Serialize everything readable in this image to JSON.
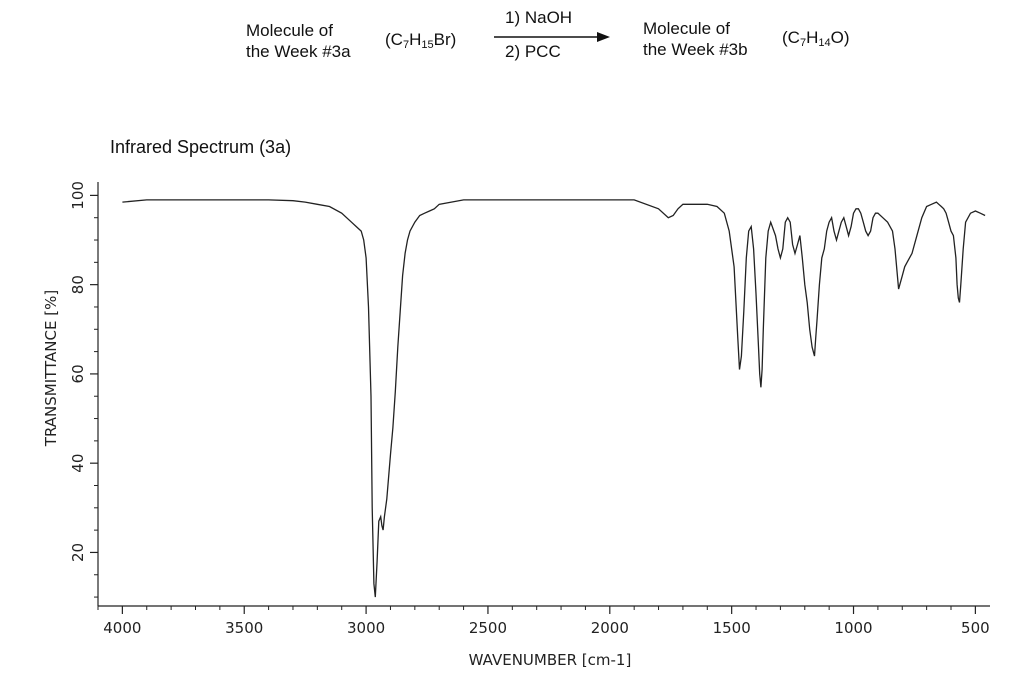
{
  "reaction": {
    "reactant_name_line1": "Molecule of",
    "reactant_name_line2": "the Week #3a",
    "reactant_formula": {
      "prefix": "(C",
      "s1": "7",
      "mid": "H",
      "s2": "15",
      "suffix": "Br)"
    },
    "step1": "1)  NaOH",
    "step2": "2)  PCC",
    "product_name_line1": "Molecule of",
    "product_name_line2": "the Week #3b",
    "product_formula": {
      "prefix": "(C",
      "s1": "7",
      "mid": "H",
      "s2": "14",
      "suffix": "O)"
    }
  },
  "chart_data": {
    "type": "line",
    "title": "Infrared Spectrum (3a)",
    "xlabel": "WAVENUMBER [cm-1]",
    "ylabel": "TRANSMITTANCE [%]",
    "xlim": [
      4100,
      440
    ],
    "ylim": [
      8,
      103
    ],
    "x_ticks": [
      4000,
      3500,
      3000,
      2500,
      2000,
      1500,
      1000,
      500
    ],
    "y_ticks": [
      20,
      40,
      60,
      80,
      100
    ],
    "grid": false,
    "line_color": "#222222",
    "series": [
      {
        "x": [
          4000,
          3900,
          3800,
          3700,
          3600,
          3500,
          3400,
          3300,
          3250,
          3200,
          3150,
          3100,
          3060,
          3040,
          3020,
          3010,
          3000,
          2990,
          2980,
          2975,
          2968,
          2962,
          2955,
          2948,
          2940,
          2935,
          2930,
          2925,
          2915,
          2900,
          2890,
          2880,
          2870,
          2860,
          2850,
          2840,
          2830,
          2820,
          2800,
          2780,
          2760,
          2740,
          2720,
          2700,
          2600,
          2500,
          2400,
          2300,
          2200,
          2100,
          2000,
          1900,
          1800,
          1760,
          1740,
          1720,
          1700,
          1650,
          1600,
          1560,
          1530,
          1510,
          1490,
          1475,
          1468,
          1460,
          1450,
          1440,
          1430,
          1420,
          1410,
          1400,
          1390,
          1385,
          1380,
          1375,
          1370,
          1360,
          1350,
          1340,
          1320,
          1310,
          1300,
          1290,
          1280,
          1270,
          1260,
          1250,
          1240,
          1230,
          1220,
          1210,
          1200,
          1190,
          1180,
          1170,
          1160,
          1155,
          1150,
          1140,
          1130,
          1120,
          1110,
          1100,
          1090,
          1080,
          1070,
          1060,
          1050,
          1040,
          1030,
          1020,
          1010,
          1000,
          990,
          980,
          970,
          960,
          950,
          940,
          930,
          920,
          910,
          900,
          880,
          860,
          840,
          830,
          820,
          815,
          810,
          800,
          790,
          780,
          760,
          740,
          720,
          700,
          680,
          660,
          650,
          640,
          630,
          620,
          610,
          600,
          590,
          580,
          575,
          570,
          565,
          560,
          550,
          540,
          520,
          500,
          480,
          460
        ],
        "y": [
          98.5,
          99,
          99,
          99,
          99,
          99,
          99,
          98.8,
          98.5,
          98,
          97.5,
          96,
          94,
          93,
          92,
          90,
          86,
          75,
          55,
          30,
          13,
          10,
          18,
          27,
          28,
          26,
          25,
          28,
          32,
          42,
          48,
          56,
          66,
          74,
          82,
          87,
          90,
          92,
          94,
          95.5,
          96,
          96.5,
          97,
          98,
          99,
          99,
          99,
          99,
          99,
          99,
          99,
          99,
          97,
          95,
          95.5,
          97,
          98,
          98,
          98,
          97.5,
          96,
          92,
          84,
          68,
          61,
          64,
          74,
          86,
          92,
          93,
          88,
          78,
          66,
          60,
          57,
          61,
          70,
          86,
          92,
          94,
          91,
          88,
          86,
          88,
          94,
          95,
          94,
          89,
          87,
          89,
          91,
          86,
          80,
          76,
          70,
          66,
          64,
          68,
          72,
          80,
          86,
          88,
          92,
          94,
          95,
          92,
          90,
          92,
          94,
          95,
          93,
          91,
          93,
          96,
          97,
          97,
          96,
          94,
          92,
          91,
          92,
          95,
          96,
          96,
          95,
          94,
          92,
          88,
          82,
          79,
          80,
          82,
          84,
          85,
          87,
          91,
          95,
          97.5,
          98,
          98.5,
          98,
          97.5,
          97,
          96,
          94,
          92,
          91,
          86,
          80,
          77,
          76,
          80,
          88,
          94,
          96,
          96.5,
          96,
          95.5
        ]
      }
    ]
  }
}
